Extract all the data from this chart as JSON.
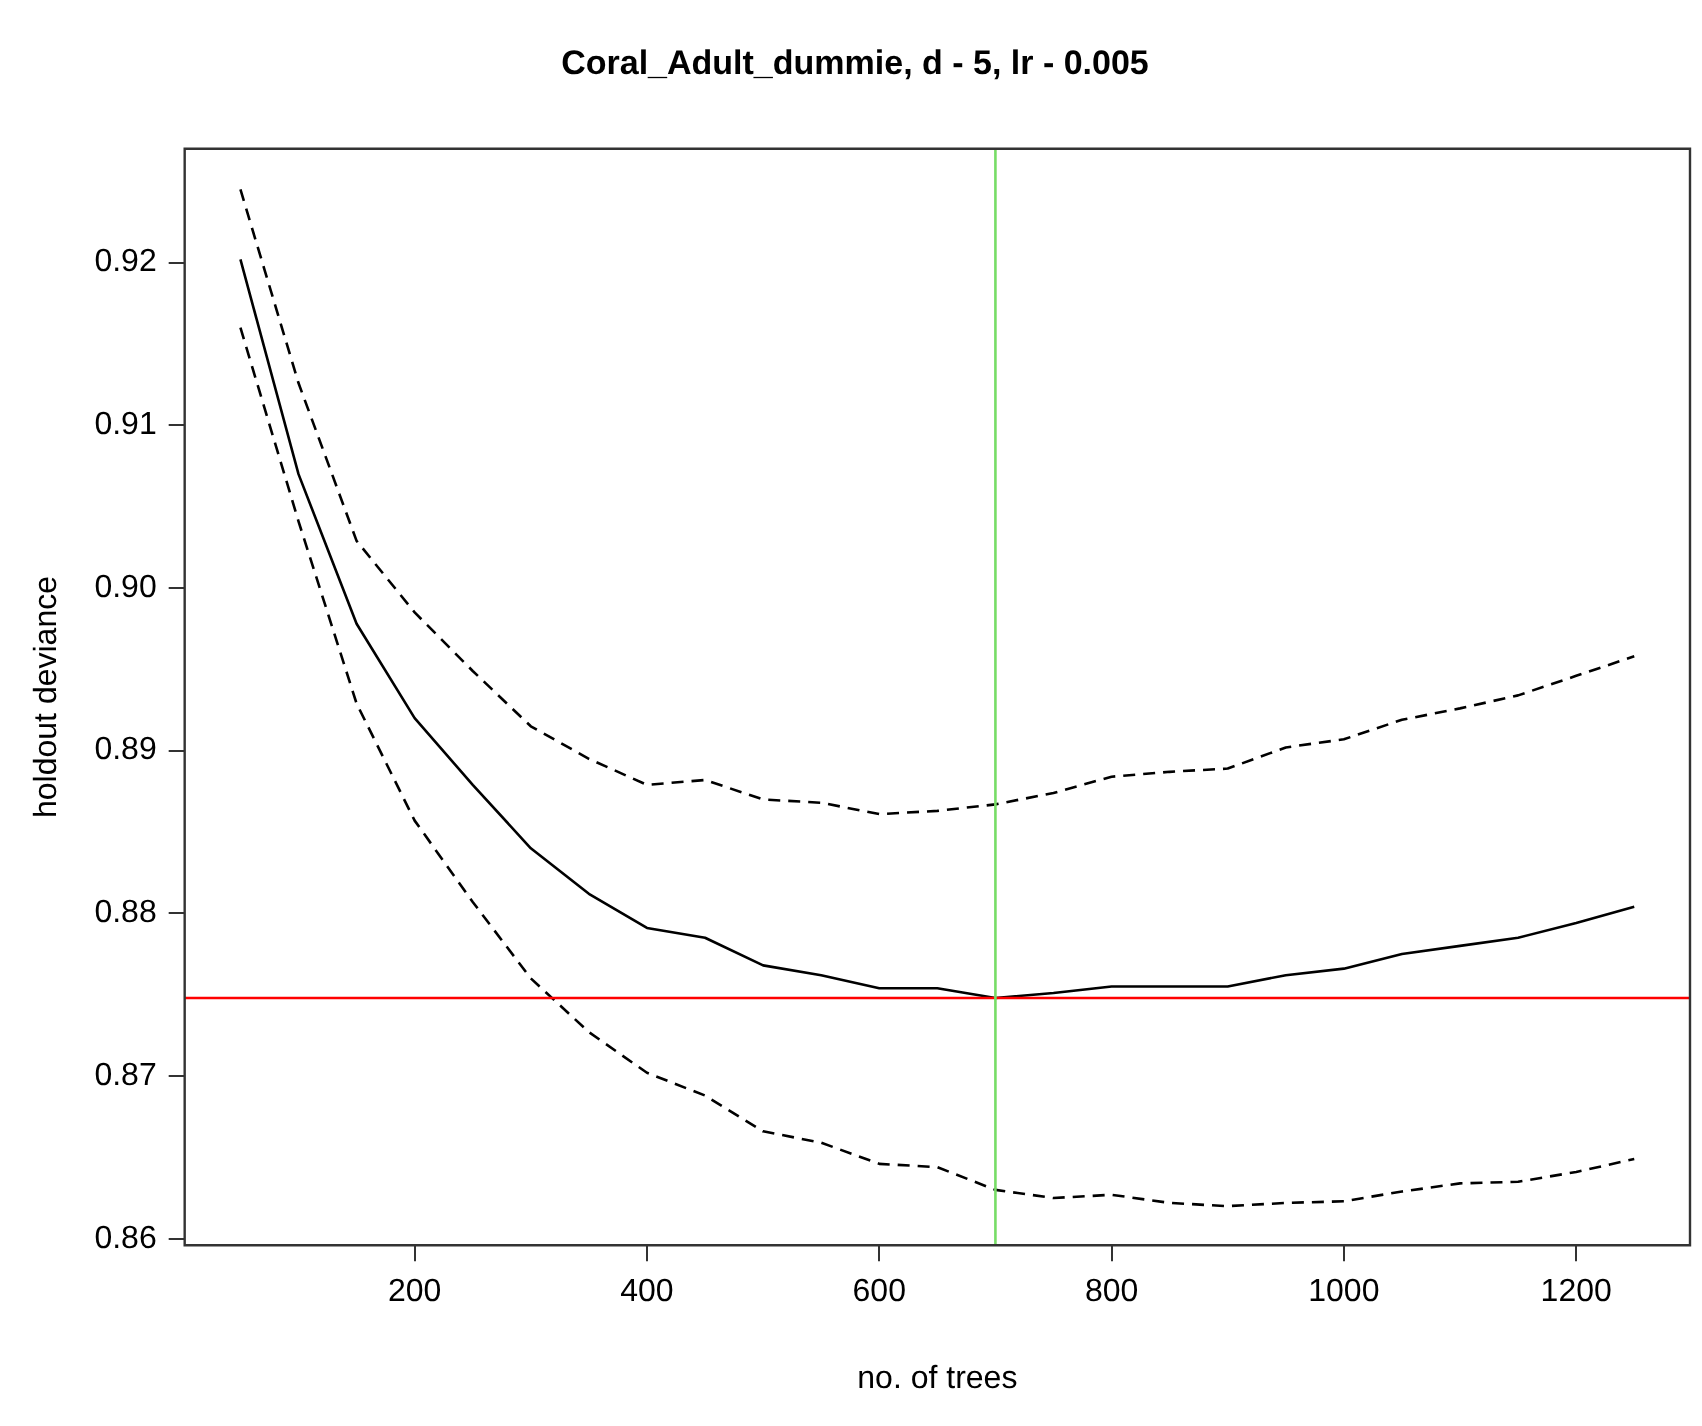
{
  "chart_data": {
    "type": "line",
    "title": "Coral_Adult_dummie, d - 5, lr - 0.005",
    "xlabel": "no. of trees",
    "ylabel": "holdout deviance",
    "x": [
      50,
      100,
      150,
      200,
      250,
      300,
      350,
      400,
      450,
      500,
      550,
      600,
      650,
      700,
      750,
      800,
      850,
      900,
      950,
      1000,
      1050,
      1100,
      1150,
      1200,
      1250
    ],
    "series": [
      {
        "color": "#000000",
        "line_style": "solid",
        "values": [
          0.9202,
          0.907,
          0.8978,
          0.892,
          0.8879,
          0.884,
          0.8812,
          0.8791,
          0.8785,
          0.8768,
          0.8762,
          0.8754,
          0.8754,
          0.8748,
          0.8751,
          0.8755,
          0.8755,
          0.8755,
          0.8762,
          0.8766,
          0.8775,
          0.878,
          0.8785,
          0.8794,
          0.8804
        ]
      },
      {
        "color": "#000000",
        "line_style": "dashed",
        "values": [
          0.9245,
          0.9126,
          0.9029,
          0.8985,
          0.8949,
          0.8915,
          0.8895,
          0.8879,
          0.8882,
          0.887,
          0.8868,
          0.8861,
          0.8863,
          0.8867,
          0.8874,
          0.8884,
          0.8887,
          0.8889,
          0.8902,
          0.8907,
          0.8919,
          0.8926,
          0.8934,
          0.8946,
          0.8958
        ]
      },
      {
        "color": "#000000",
        "line_style": "dashed",
        "values": [
          0.916,
          0.9041,
          0.8929,
          0.8857,
          0.8807,
          0.876,
          0.8727,
          0.8702,
          0.8688,
          0.8666,
          0.8659,
          0.8646,
          0.8644,
          0.863,
          0.8625,
          0.8627,
          0.8622,
          0.862,
          0.8622,
          0.8623,
          0.8629,
          0.8634,
          0.8635,
          0.8641,
          0.8649
        ]
      }
    ],
    "ref_lines": [
      {
        "axis": "y",
        "value": 0.8748,
        "color": "#ff0000"
      },
      {
        "axis": "x",
        "value": 700,
        "color": "#77dd66"
      }
    ],
    "xlim": [
      2,
      1298
    ],
    "xticks": [
      200,
      400,
      600,
      800,
      1000,
      1200
    ],
    "ylim": [
      0.8596,
      0.927
    ],
    "yticks": [
      0.86,
      0.87,
      0.88,
      0.89,
      {
        "value": 0.9,
        "label": "0.90"
      },
      0.91,
      0.92
    ],
    "grid": false,
    "legend": false,
    "marker": "none"
  }
}
